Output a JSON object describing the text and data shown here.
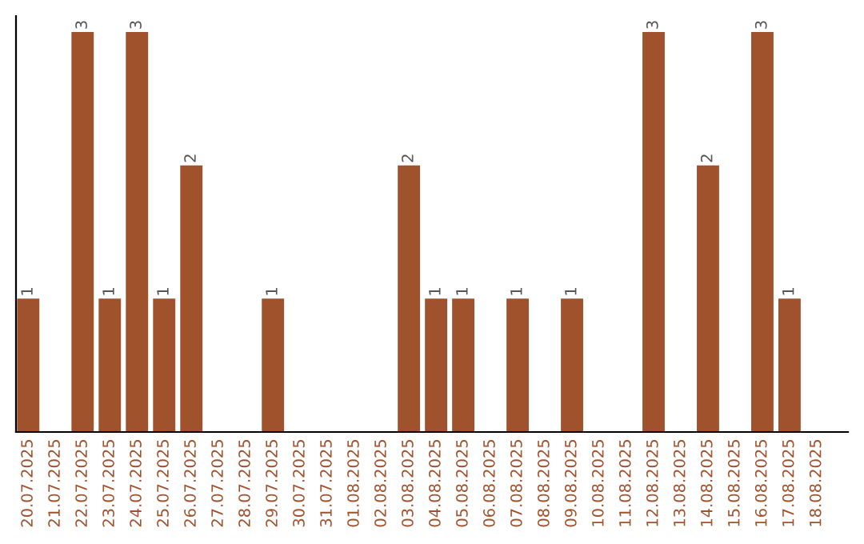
{
  "chart_data": {
    "type": "bar",
    "categories": [
      "20.07.2025",
      "21.07.2025",
      "22.07.2025",
      "23.07.2025",
      "24.07.2025",
      "25.07.2025",
      "26.07.2025",
      "27.07.2025",
      "28.07.2025",
      "29.07.2025",
      "30.07.2025",
      "31.07.2025",
      "01.08.2025",
      "02.08.2025",
      "03.08.2025",
      "04.08.2025",
      "05.08.2025",
      "06.08.2025",
      "07.08.2025",
      "08.08.2025",
      "09.08.2025",
      "10.08.2025",
      "11.08.2025",
      "12.08.2025",
      "13.08.2025",
      "14.08.2025",
      "15.08.2025",
      "16.08.2025",
      "17.08.2025",
      "18.08.2025"
    ],
    "values": [
      1,
      0,
      3,
      1,
      3,
      1,
      2,
      0,
      0,
      1,
      0,
      0,
      0,
      0,
      2,
      1,
      1,
      0,
      1,
      0,
      1,
      0,
      0,
      3,
      0,
      2,
      0,
      3,
      1,
      0
    ],
    "value_labels": [
      "1",
      null,
      "3",
      "1",
      "3",
      "1",
      "2",
      null,
      null,
      "1",
      null,
      null,
      null,
      null,
      "2",
      "1",
      "1",
      null,
      "1",
      null,
      "1",
      null,
      null,
      "3",
      null,
      "2",
      null,
      "3",
      "1",
      null
    ],
    "color": "#a0522d",
    "tick_labels": "x",
    "grid": false,
    "legend": false
  }
}
